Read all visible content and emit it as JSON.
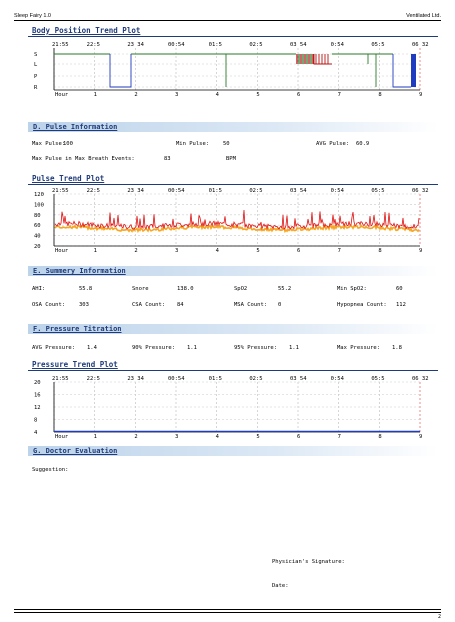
{
  "header": {
    "app": "Sleep Fairy 1.0",
    "company": "Ventilated Ltd."
  },
  "time_labels": [
    "21:55",
    "22:5",
    "23 34",
    "00:54",
    "01:5",
    "02:5",
    "03 54",
    "0:54",
    "05:5",
    "06 32"
  ],
  "hour_labels": [
    "Hour",
    "1",
    "2",
    "3",
    "4",
    "5",
    "6",
    "7",
    "8",
    "9"
  ],
  "body_plot": {
    "title": "Body Position Trend Plot",
    "y_labels": [
      "S",
      "L",
      "P",
      "R"
    ],
    "colors": {
      "supine": "#2a7a2a",
      "left": "#1f3bbf",
      "prone": "#b81212"
    }
  },
  "pulse_info": {
    "title": "D.  Pulse Information",
    "max_label": "Max Pulse:",
    "max_value": "100",
    "min_label": "Min Pulse:",
    "min_value": "50",
    "avg_label": "AVG Pulse:",
    "avg_value": "60.9",
    "breath_label": "Max Pulse in Max Breath Events:",
    "breath_value": "83",
    "breath_unit": "BPM"
  },
  "pulse_plot": {
    "title": "Pulse Trend Plot",
    "y_ticks": [
      "120",
      "100",
      "80",
      "60",
      "40",
      "20"
    ],
    "colors": {
      "line": "#e01010",
      "fill": "#f5a623"
    }
  },
  "summary": {
    "title": "E.  Summery Information",
    "row1": [
      {
        "label": "AHI:",
        "value": "55.8"
      },
      {
        "label": "Snore",
        "value": "138.0"
      },
      {
        "label": "SpO2",
        "value": "55.2"
      },
      {
        "label": "Min SpO2:",
        "value": "60"
      }
    ],
    "row2": [
      {
        "label": "OSA Count:",
        "value": "303"
      },
      {
        "label": "CSA Count:",
        "value": "84"
      },
      {
        "label": "MSA Count:",
        "value": "0"
      },
      {
        "label": "Hypopnea Count:",
        "value": "112"
      }
    ]
  },
  "pressure": {
    "title": "F.  Pressure Titration",
    "items": [
      {
        "label": "AVG Pressure:",
        "value": "1.4"
      },
      {
        "label": "90% Pressure:",
        "value": "1.1"
      },
      {
        "label": "95% Pressure:",
        "value": "1.1"
      },
      {
        "label": "Max Pressure:",
        "value": "1.8"
      }
    ]
  },
  "pressure_plot": {
    "title": "Pressure Trend Plot",
    "y_ticks": [
      "20",
      "16",
      "12",
      "8",
      "4"
    ]
  },
  "doctor": {
    "title": "G.  Doctor Evaluation",
    "suggestion": "Suggestion:",
    "signature": "Physician's Signature:",
    "date": "Date:"
  },
  "page_number": "2"
}
